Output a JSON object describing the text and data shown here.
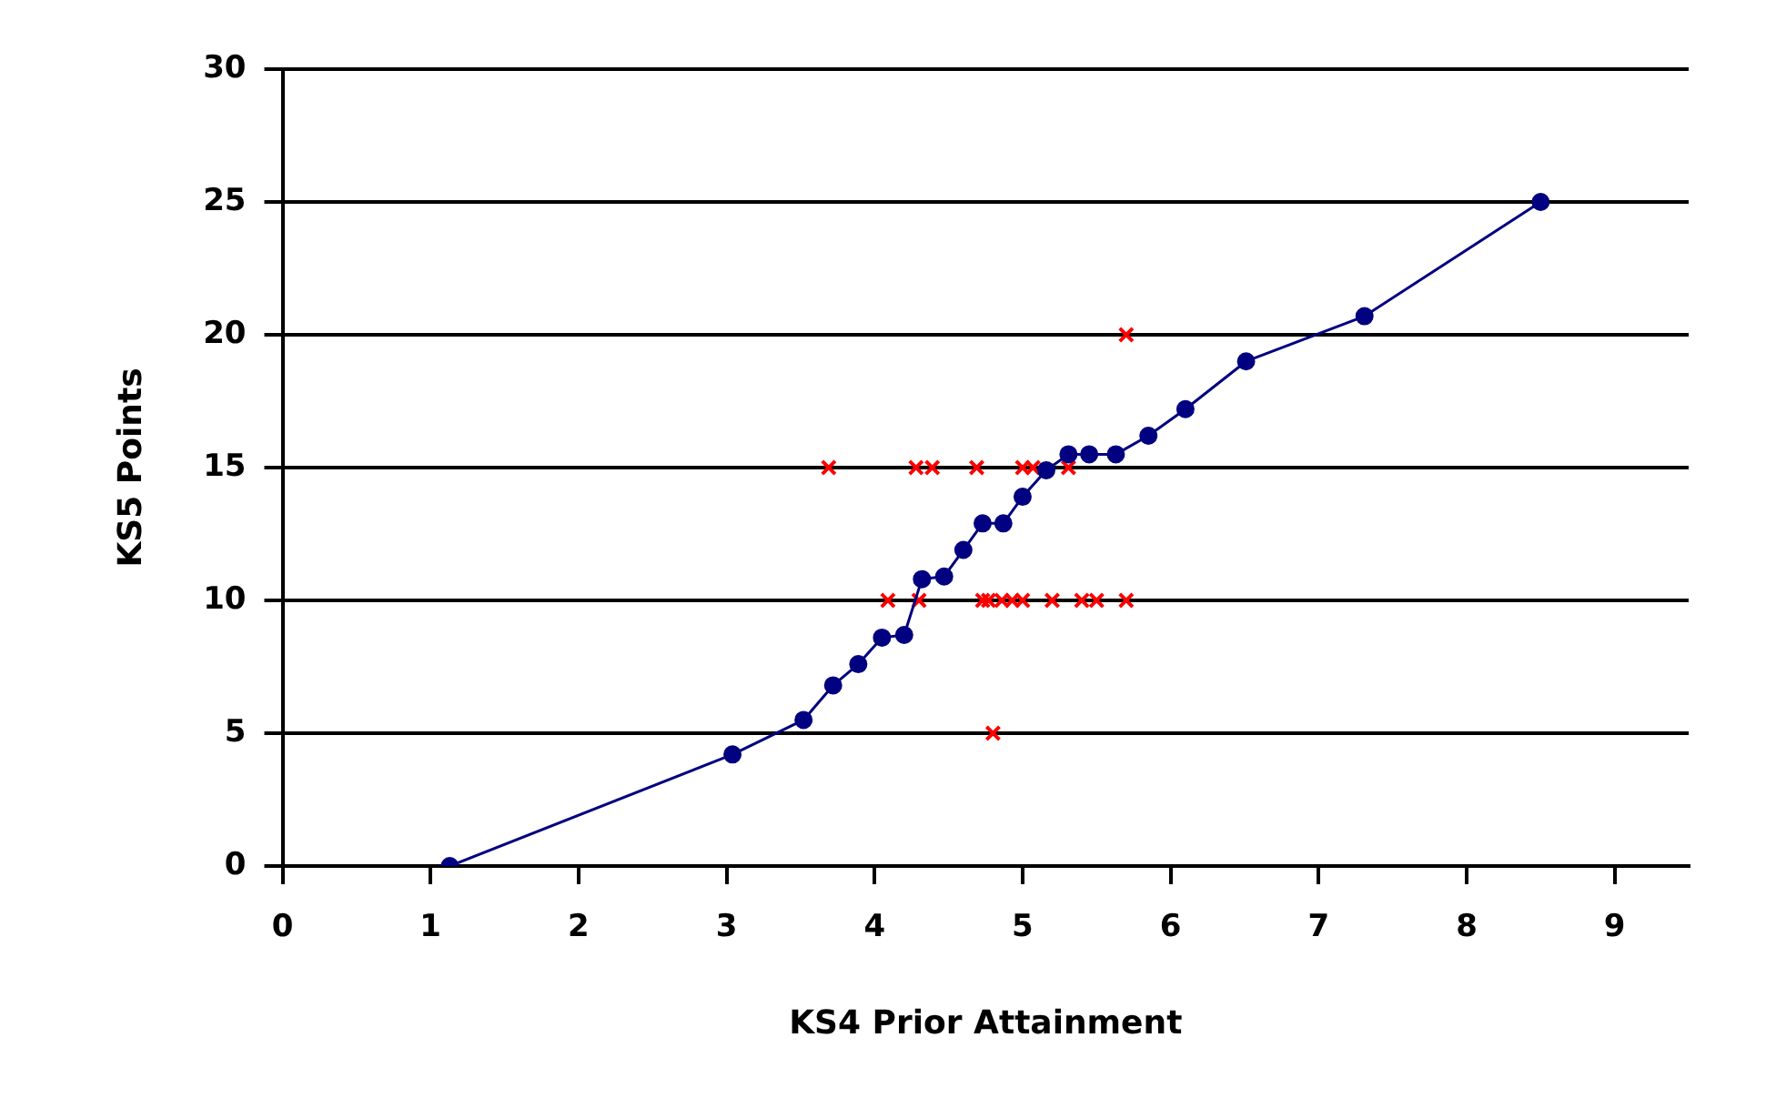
{
  "chart_data": {
    "type": "scatter",
    "xlabel": "KS4 Prior Attainment",
    "ylabel": "KS5 Points",
    "xlim": [
      0,
      9.5
    ],
    "xticks": [
      0,
      1,
      2,
      3,
      4,
      5,
      6,
      7,
      8,
      9
    ],
    "ylim": [
      0,
      30
    ],
    "yticks": [
      0,
      5,
      10,
      15,
      20,
      25,
      30
    ],
    "grid": "y",
    "legend": false,
    "series": [
      {
        "type": "line",
        "color": "#000080",
        "marker": "circle",
        "line_style": "solid",
        "x": [
          1.13,
          3.04,
          3.52,
          3.72,
          3.89,
          4.05,
          4.2,
          4.32,
          4.47,
          4.6,
          4.73,
          4.87,
          5.0,
          5.16,
          5.31,
          5.45,
          5.63,
          5.85,
          6.1,
          6.51,
          7.31,
          8.5
        ],
        "values": [
          0,
          4.2,
          5.5,
          6.8,
          7.6,
          8.6,
          8.7,
          10.8,
          10.9,
          11.9,
          12.9,
          12.9,
          13.9,
          14.9,
          15.5,
          15.5,
          15.5,
          16.2,
          17.2,
          19,
          20.7,
          25
        ]
      },
      {
        "color": "#ff0000",
        "marker": "cross",
        "x": [
          3.69,
          4.28,
          4.39,
          4.69,
          5.0,
          5.07,
          5.31,
          4.09,
          4.3,
          4.73,
          4.77,
          4.86,
          4.93,
          5.0,
          5.2,
          5.4,
          5.5,
          5.7,
          4.8,
          5.7
        ],
        "values": [
          15,
          15,
          15,
          15,
          15,
          15,
          15,
          10,
          10,
          10,
          10,
          10,
          10,
          10,
          10,
          10,
          10,
          10,
          5,
          20
        ]
      }
    ]
  }
}
